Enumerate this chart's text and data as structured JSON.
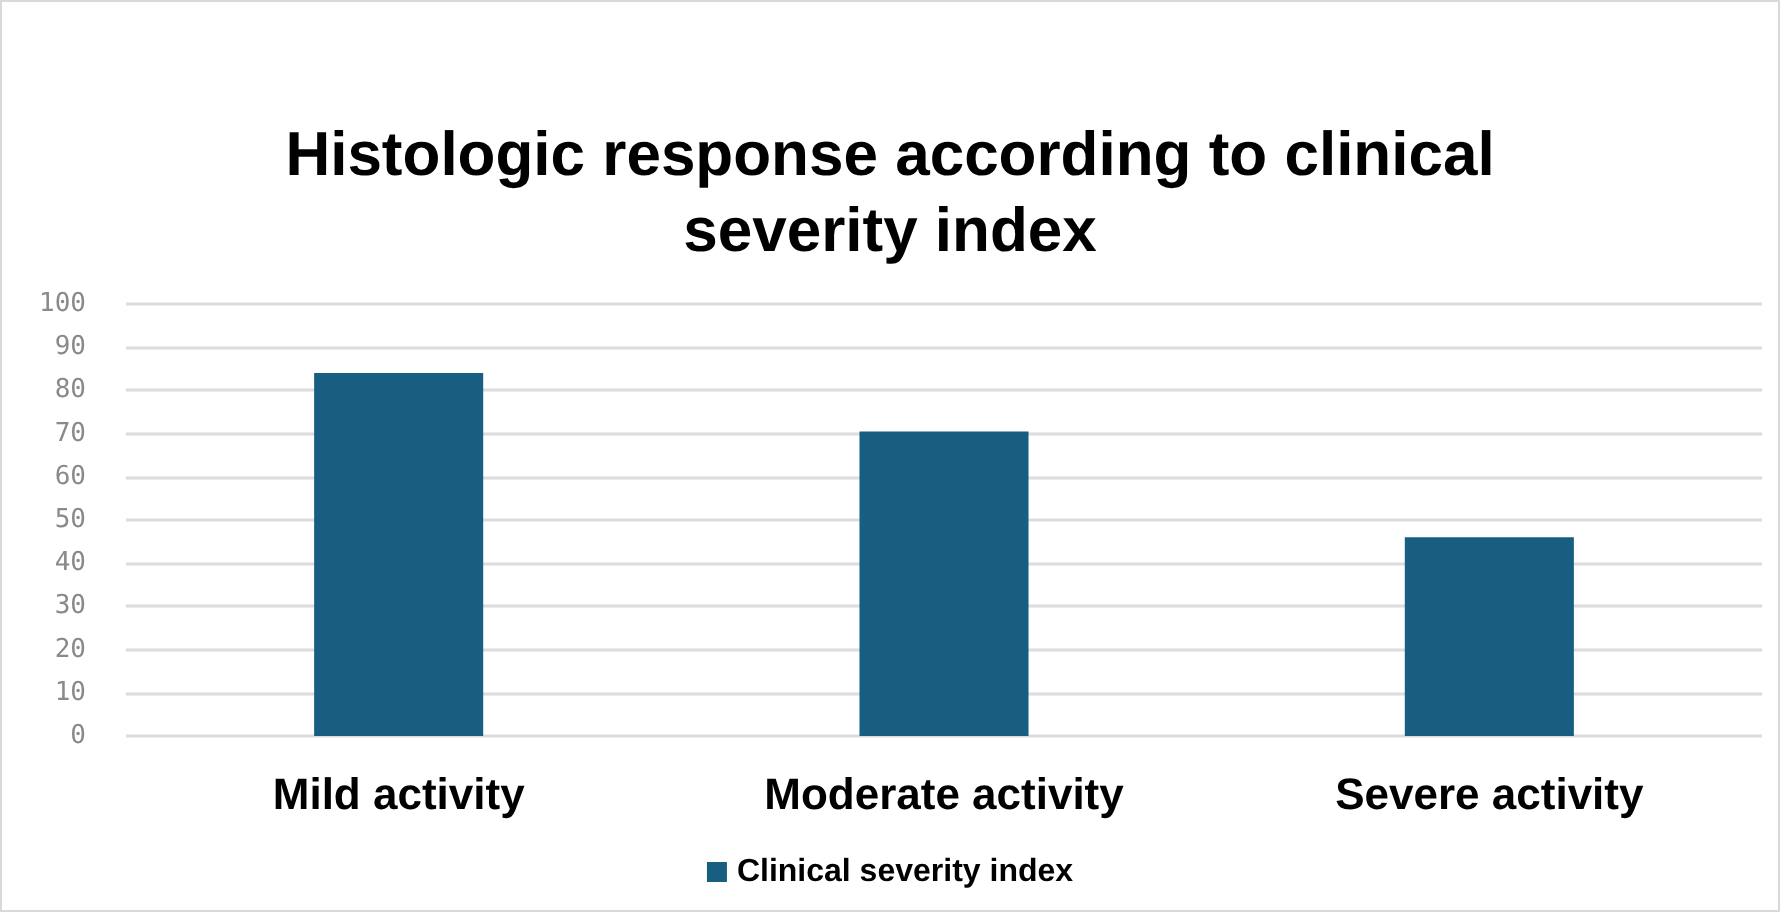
{
  "chart_data": {
    "type": "bar",
    "title": "Histologic response according to clinical\nseverity index",
    "categories": [
      "Mild activity",
      "Moderate activity",
      "Severe activity"
    ],
    "series": [
      {
        "name": "Clinical severity index",
        "color": "#175e80",
        "values": [
          84,
          70.5,
          46
        ]
      }
    ],
    "ylim": [
      0,
      100
    ],
    "yticks": [
      0,
      10,
      20,
      30,
      40,
      50,
      60,
      70,
      80,
      90,
      100
    ],
    "grid": "y",
    "legend": "bottom"
  }
}
